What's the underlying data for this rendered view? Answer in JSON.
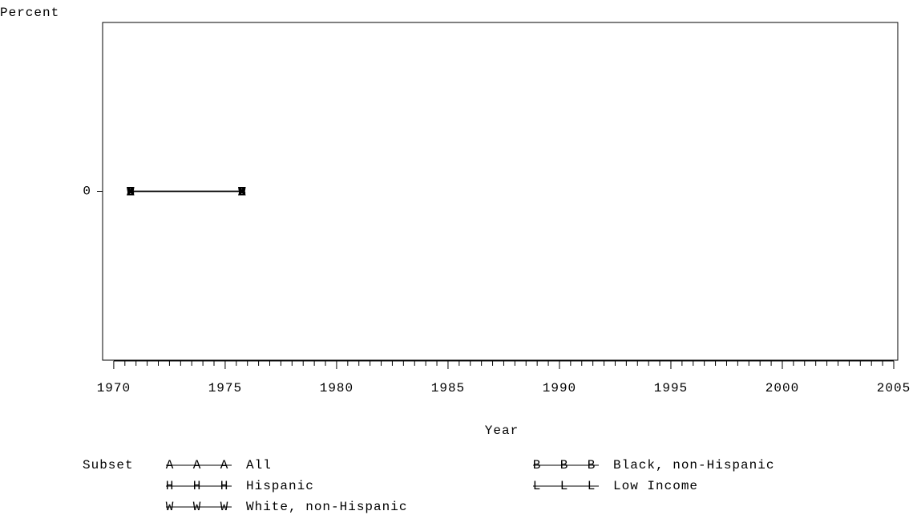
{
  "chart_data": {
    "type": "line",
    "y_label": "Percent",
    "x_label": "Year",
    "legend_title": "Subset",
    "xlim": [
      1969.5,
      2005.18
    ],
    "xticks": [
      1970,
      1975,
      1980,
      1985,
      1990,
      1995,
      2000,
      2005
    ],
    "ylim": [
      -1,
      1
    ],
    "yticks": [
      0
    ],
    "x": [
      1970.75,
      1975.75
    ],
    "series": [
      {
        "name": "All",
        "symbol": "A",
        "color": "#000000",
        "values": [
          0,
          0
        ]
      },
      {
        "name": "Black, non-Hispanic",
        "symbol": "B",
        "color": "#000000",
        "values": [
          0,
          0
        ]
      },
      {
        "name": "Hispanic",
        "symbol": "H",
        "color": "#000000",
        "values": [
          0,
          0
        ]
      },
      {
        "name": "Low Income",
        "symbol": "L",
        "color": "#000000",
        "values": [
          0,
          0
        ]
      },
      {
        "name": "White, non-Hispanic",
        "symbol": "W",
        "color": "#000000",
        "values": [
          0,
          0
        ]
      }
    ]
  }
}
